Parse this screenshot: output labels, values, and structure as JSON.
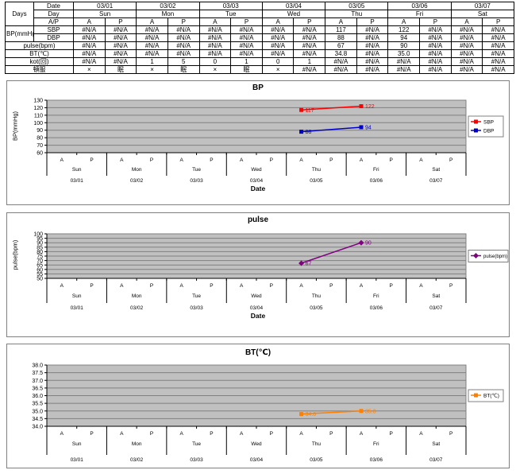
{
  "table": {
    "corner_label": "Days",
    "row_labels": {
      "date": "Date",
      "day": "Day",
      "ap": "A/P",
      "bp_group": "BP(mmHg)",
      "sbp": "SBP",
      "dbp": "DBP",
      "pulse": "pulse(bpm)",
      "bt": "BT(℃)",
      "kot": "kot(回)",
      "tonpuku": "頓服"
    },
    "dates": [
      "03/01",
      "03/02",
      "03/03",
      "03/04",
      "03/05",
      "03/06",
      "03/07"
    ],
    "days": [
      "Sun",
      "Mon",
      "Tue",
      "Wed",
      "Thu",
      "Fri",
      "Sat"
    ],
    "ap_labels": [
      "A",
      "P"
    ],
    "values": {
      "sbp": [
        "#N/A",
        "#N/A",
        "#N/A",
        "#N/A",
        "#N/A",
        "#N/A",
        "#N/A",
        "#N/A",
        "117",
        "#N/A",
        "122",
        "#N/A",
        "#N/A",
        "#N/A"
      ],
      "dbp": [
        "#N/A",
        "#N/A",
        "#N/A",
        "#N/A",
        "#N/A",
        "#N/A",
        "#N/A",
        "#N/A",
        "88",
        "#N/A",
        "94",
        "#N/A",
        "#N/A",
        "#N/A"
      ],
      "pulse": [
        "#N/A",
        "#N/A",
        "#N/A",
        "#N/A",
        "#N/A",
        "#N/A",
        "#N/A",
        "#N/A",
        "67",
        "#N/A",
        "90",
        "#N/A",
        "#N/A",
        "#N/A"
      ],
      "bt": [
        "#N/A",
        "#N/A",
        "#N/A",
        "#N/A",
        "#N/A",
        "#N/A",
        "#N/A",
        "#N/A",
        "34.8",
        "#N/A",
        "35.0",
        "#N/A",
        "#N/A",
        "#N/A"
      ],
      "kot": [
        "#N/A",
        "#N/A",
        "1",
        "5",
        "0",
        "1",
        "0",
        "1",
        "#N/A",
        "#N/A",
        "#N/A",
        "#N/A",
        "#N/A",
        "#N/A"
      ],
      "tonpuku": [
        "×",
        "眠",
        "×",
        "眠",
        "×",
        "眠",
        "×",
        "#N/A",
        "#N/A",
        "#N/A",
        "#N/A",
        "#N/A",
        "#N/A",
        "#N/A"
      ]
    }
  },
  "chart_data": [
    {
      "type": "line",
      "title": "BP",
      "ylabel": "BP(mmHg)",
      "xlabel": "Date",
      "ylim": [
        60,
        130
      ],
      "yticks": [
        "130",
        "120",
        "110",
        "100",
        "90",
        "80",
        "70",
        "60"
      ],
      "x_slot_count": 14,
      "x_ap": [
        "A",
        "P"
      ],
      "x_days": [
        "Sun",
        "Mon",
        "Tue",
        "Wed",
        "Thu",
        "Fri",
        "Sat"
      ],
      "x_dates": [
        "03/01",
        "03/02",
        "03/03",
        "03/04",
        "03/05",
        "03/06",
        "03/07"
      ],
      "plot_bg": "#c0c0c0",
      "grid": true,
      "legend_position": "right",
      "series": [
        {
          "name": "SBP",
          "color": "#ff0000",
          "marker": "square",
          "points": [
            {
              "slot": 8,
              "value": 117,
              "label": "117"
            },
            {
              "slot": 10,
              "value": 122,
              "label": "122"
            }
          ]
        },
        {
          "name": "DBP",
          "color": "#0000cc",
          "marker": "square",
          "points": [
            {
              "slot": 8,
              "value": 88,
              "label": "88"
            },
            {
              "slot": 10,
              "value": 94,
              "label": "94"
            }
          ]
        }
      ]
    },
    {
      "type": "line",
      "title": "pulse",
      "ylabel": "pulse(bpm)",
      "xlabel": "Date",
      "ylim": [
        50,
        100
      ],
      "yticks": [
        "100",
        "95",
        "90",
        "85",
        "80",
        "75",
        "70",
        "65",
        "60",
        "55",
        "50"
      ],
      "x_slot_count": 14,
      "x_ap": [
        "A",
        "P"
      ],
      "x_days": [
        "Sun",
        "Mon",
        "Tue",
        "Wed",
        "Thu",
        "Fri",
        "Sat"
      ],
      "x_dates": [
        "03/01",
        "03/02",
        "03/03",
        "03/04",
        "03/05",
        "03/06",
        "03/07"
      ],
      "plot_bg": "#c0c0c0",
      "grid": true,
      "legend_position": "right",
      "series": [
        {
          "name": "pulse(bpm)",
          "color": "#800080",
          "marker": "diamond",
          "points": [
            {
              "slot": 8,
              "value": 67,
              "label": "67"
            },
            {
              "slot": 10,
              "value": 90,
              "label": "90"
            }
          ]
        }
      ]
    },
    {
      "type": "line",
      "title": "BT(℃)",
      "ylabel": "",
      "xlabel": "",
      "ylim": [
        34.0,
        38.0
      ],
      "yticks": [
        "38.0",
        "37.5",
        "37.0",
        "36.5",
        "36.0",
        "35.5",
        "35.0",
        "34.5",
        "34.0"
      ],
      "x_slot_count": 14,
      "x_ap": [
        "A",
        "P"
      ],
      "x_days": [
        "Sun",
        "Mon",
        "Tue",
        "Wed",
        "Thu",
        "Fri",
        "Sat"
      ],
      "x_dates": [
        "03/01",
        "03/02",
        "03/03",
        "03/04",
        "03/05",
        "03/06",
        "03/07"
      ],
      "plot_bg": "#c0c0c0",
      "grid": true,
      "legend_position": "right",
      "series": [
        {
          "name": "BT(℃)",
          "color": "#ff8000",
          "marker": "square",
          "points": [
            {
              "slot": 8,
              "value": 34.8,
              "label": "34.8"
            },
            {
              "slot": 10,
              "value": 35.0,
              "label": "35.0"
            }
          ]
        }
      ]
    }
  ]
}
